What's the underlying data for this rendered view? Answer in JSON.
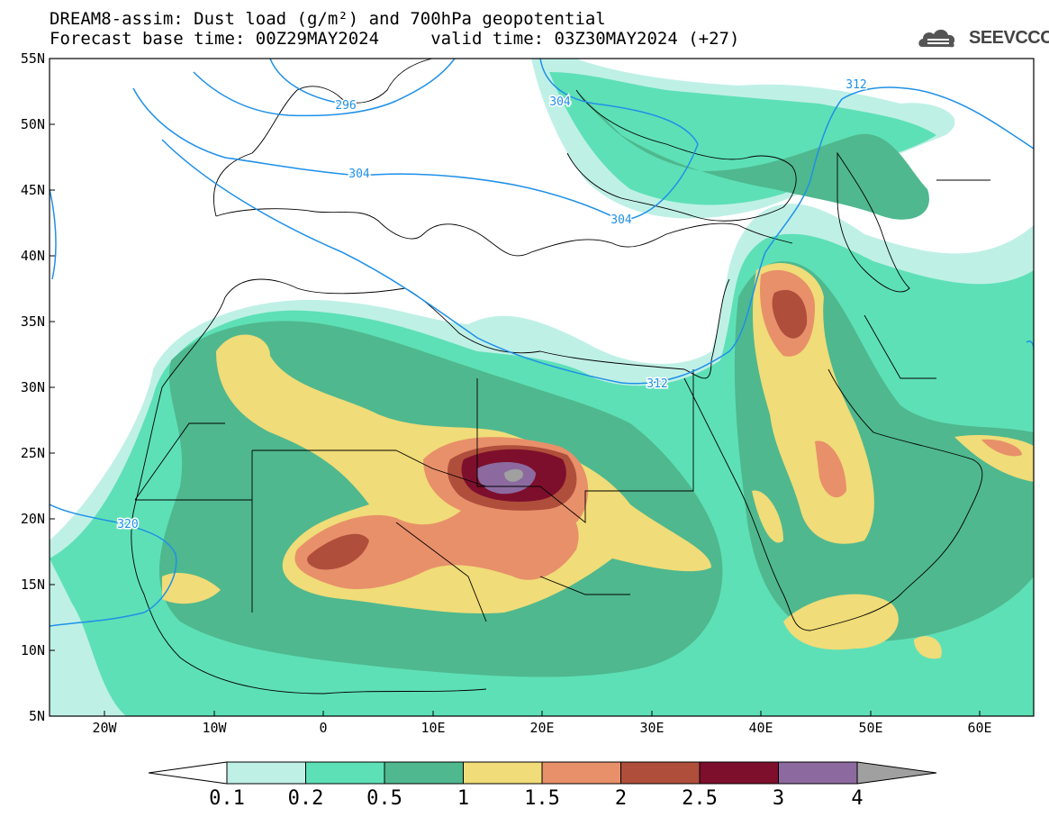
{
  "title_line1": "DREAM8-assim: Dust load (g/m²) and 700hPa geopotential",
  "title_line2": "Forecast base time: 00Z29MAY2024     valid time: 03Z30MAY2024 (+27)",
  "logo_text": "SEEVCCC",
  "lat_labels": [
    "55N",
    "50N",
    "45N",
    "40N",
    "35N",
    "30N",
    "25N",
    "20N",
    "15N",
    "10N",
    "5N"
  ],
  "lon_labels": [
    "20W",
    "10W",
    "0",
    "10E",
    "20E",
    "30E",
    "40E",
    "50E",
    "60E"
  ],
  "contour_labels": [
    "296",
    "304",
    "304",
    "304",
    "312",
    "312",
    "320"
  ],
  "colorbar": {
    "labels": [
      "0.1",
      "0.2",
      "0.5",
      "1",
      "1.5",
      "2",
      "2.5",
      "3",
      "4"
    ],
    "colors": [
      "#bff0e6",
      "#5ee0b6",
      "#4fb88e",
      "#f0dc78",
      "#e8906a",
      "#b04e3c",
      "#7d0f2c",
      "#8c6aa0"
    ],
    "low_color": "#ffffff",
    "high_color": "#a0a0a0"
  },
  "map_colors": {
    "land_line": "#000000",
    "contour": "#1e90e8"
  }
}
